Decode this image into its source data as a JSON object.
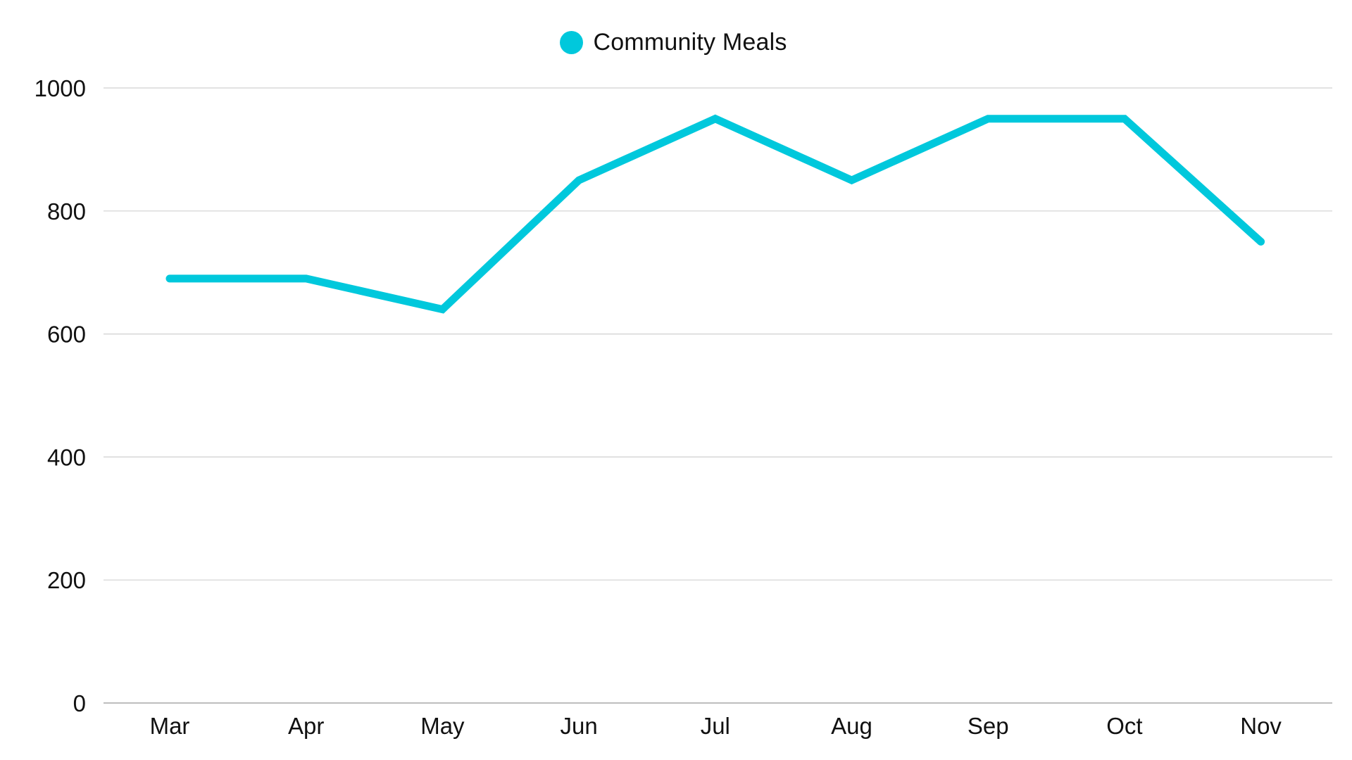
{
  "legend": {
    "items": [
      {
        "label": "Community Meals",
        "color": "#00C8DC",
        "icon": "circle-marker-icon"
      }
    ]
  },
  "axes": {
    "y_ticks": [
      "0",
      "200",
      "400",
      "600",
      "800",
      "1000"
    ],
    "x_ticks": [
      "Mar",
      "Apr",
      "May",
      "Jun",
      "Jul",
      "Aug",
      "Sep",
      "Oct",
      "Nov"
    ]
  },
  "colors": {
    "series": "#00C8DC",
    "gridline": "#D0D0D0",
    "baseline": "#BDBDBD",
    "text": "#111111"
  },
  "chart_data": {
    "type": "line",
    "title": "",
    "xlabel": "",
    "ylabel": "",
    "categories": [
      "Mar",
      "Apr",
      "May",
      "Jun",
      "Jul",
      "Aug",
      "Sep",
      "Oct",
      "Nov"
    ],
    "series": [
      {
        "name": "Community Meals",
        "color": "#00C8DC",
        "values": [
          690,
          690,
          640,
          850,
          950,
          850,
          950,
          950,
          750
        ]
      }
    ],
    "ylim": [
      0,
      1000
    ],
    "yticks": [
      0,
      200,
      400,
      600,
      800,
      1000
    ],
    "grid": {
      "horizontal": true,
      "vertical": false
    },
    "legend_position": "top-center"
  }
}
